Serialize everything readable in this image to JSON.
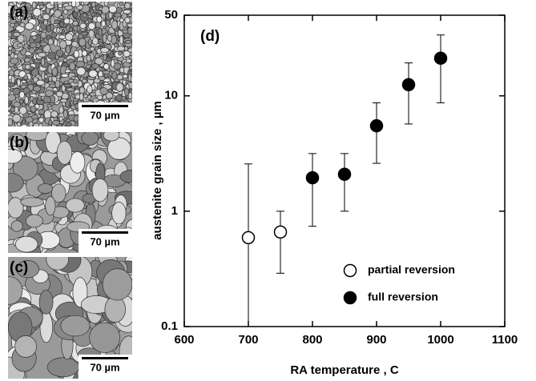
{
  "micrographs": [
    {
      "label": "(a)",
      "scale_bar": "70 µm"
    },
    {
      "label": "(b)",
      "scale_bar": "70 µm"
    },
    {
      "label": "(c)",
      "scale_bar": "70 µm"
    }
  ],
  "chart_data": {
    "type": "scatter",
    "annotation": "(d)",
    "x_label": "RA temperature , C",
    "y_label": "austenite grain size , µm",
    "xlim": [
      600,
      1100
    ],
    "xticks": [
      600,
      700,
      800,
      900,
      1000,
      1100
    ],
    "ylim": [
      0.1,
      50
    ],
    "yticks": [
      0.1,
      1,
      10,
      50
    ],
    "y_scale": "log",
    "legend": "lower-right",
    "series": [
      {
        "name": "partial reversion",
        "color": "#000000",
        "marker_fill": "#ffffff",
        "x": [
          700,
          750
        ],
        "values": [
          0.59,
          0.66
        ],
        "lower": [
          0.1,
          0.29
        ],
        "upper": [
          2.57,
          1.0
        ]
      },
      {
        "name": "full reversion",
        "color": "#000000",
        "marker_fill": "#000000",
        "x": [
          800,
          850,
          900,
          950,
          1000
        ],
        "values": [
          1.95,
          2.09,
          5.5,
          12.5,
          21.2
        ],
        "lower": [
          0.74,
          1.0,
          2.6,
          5.7,
          8.7
        ],
        "upper": [
          3.16,
          3.16,
          8.7,
          19.3,
          33.7
        ]
      }
    ]
  }
}
